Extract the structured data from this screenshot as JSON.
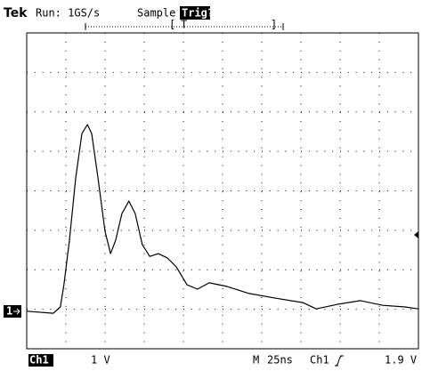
{
  "chart_data": {
    "type": "line",
    "header": {
      "brand": "Tek",
      "run": "Run: 1GS/s",
      "mode": "Sample",
      "trigger_status": "Trig?",
      "trigger_marker": "T"
    },
    "footer": {
      "channel": "Ch1",
      "scale": "1 V",
      "timebase_label": "M",
      "timebase": "25ns",
      "trigger_source": "Ch1",
      "trigger_level": "1.9 V"
    },
    "ground_marker": "1",
    "x": [
      0,
      0.68,
      0.86,
      0.95,
      1.09,
      1.25,
      1.41,
      1.55,
      1.66,
      1.82,
      2.0,
      2.14,
      2.27,
      2.43,
      2.61,
      2.77,
      2.95,
      3.14,
      3.36,
      3.59,
      3.82,
      4.09,
      4.36,
      4.66,
      5.11,
      5.68,
      6.36,
      7.05,
      7.39,
      7.95,
      8.52,
      9.09,
      9.66,
      10
    ],
    "values": [
      0.95,
      0.9,
      1.06,
      1.62,
      2.75,
      4.32,
      5.45,
      5.68,
      5.45,
      4.32,
      2.97,
      2.41,
      2.75,
      3.42,
      3.74,
      3.42,
      2.64,
      2.34,
      2.41,
      2.3,
      2.07,
      1.62,
      1.51,
      1.67,
      1.58,
      1.4,
      1.28,
      1.17,
      1.01,
      1.13,
      1.22,
      1.1,
      1.06,
      1.01
    ],
    "color": "#000000",
    "xlim": [
      0,
      10
    ],
    "ylim": [
      0,
      8
    ],
    "xticks": [
      0,
      1,
      2,
      3,
      4,
      5,
      6,
      7,
      8,
      9,
      10
    ],
    "yticks": [
      0,
      1,
      2,
      3,
      4,
      5,
      6,
      7,
      8
    ],
    "grid": true
  }
}
